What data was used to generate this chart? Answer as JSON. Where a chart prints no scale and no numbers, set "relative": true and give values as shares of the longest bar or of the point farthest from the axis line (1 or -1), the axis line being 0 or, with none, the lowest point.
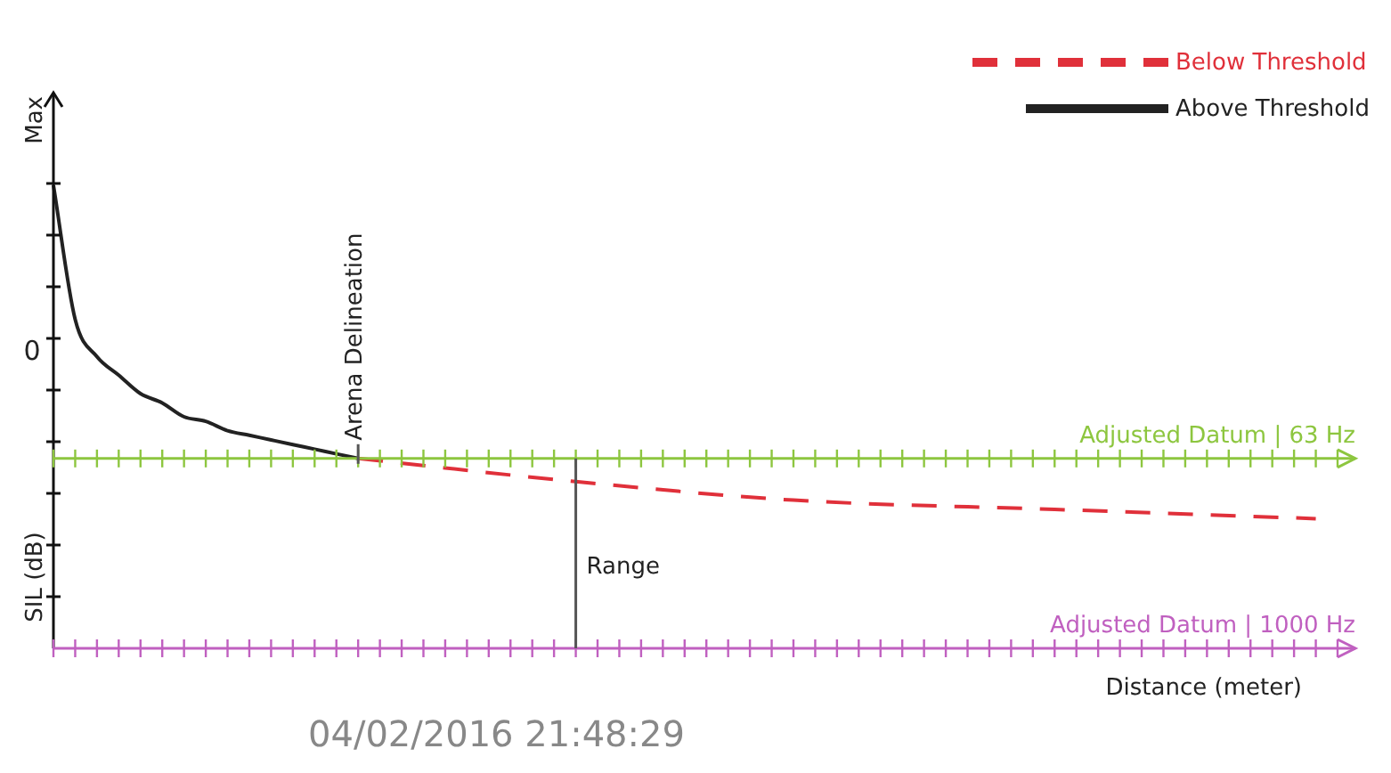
{
  "chart_data": {
    "type": "line",
    "relative": true,
    "ylabel": "SIL (dB)",
    "xlabel": "Distance (meter)",
    "categories": [
      null,
      null,
      null,
      null,
      null,
      null,
      null,
      null,
      null,
      null,
      null,
      null,
      null,
      null,
      null,
      null,
      null,
      null,
      null,
      null,
      null,
      null,
      null,
      null,
      null,
      null,
      null,
      null,
      null,
      null,
      null,
      null,
      null,
      null,
      null,
      null,
      null,
      null,
      null,
      null,
      null,
      null,
      null,
      null,
      null,
      null,
      null,
      null,
      null,
      null,
      null,
      null,
      null,
      null,
      null,
      null,
      null,
      null,
      null,
      null
    ],
    "series": [
      {
        "name": "Below Threshold",
        "color": "#e0303a",
        "line_style": "dashed",
        "values": [
          null,
          null,
          null,
          null,
          null,
          null,
          null,
          null,
          null,
          null,
          null,
          null,
          null,
          null,
          0.41,
          null,
          null,
          null,
          null,
          null,
          null,
          null,
          null,
          null,
          0.36,
          null,
          null,
          null,
          null,
          null,
          null,
          null,
          null,
          null,
          0.32,
          null,
          null,
          null,
          null,
          null,
          null,
          null,
          null,
          null,
          null,
          null,
          0.3,
          null,
          null,
          null,
          null,
          null,
          null,
          null,
          null,
          null,
          null,
          null,
          0.28,
          null
        ]
      },
      {
        "name": "Above Threshold",
        "color": "#222222",
        "line_style": "solid",
        "values": [
          1,
          0.71,
          0.63,
          0.59,
          0.55,
          0.53,
          0.5,
          0.49,
          0.47,
          0.46,
          0.45,
          0.44,
          0.43,
          0.42,
          0.41,
          null,
          null,
          null,
          null,
          null,
          null,
          null,
          null,
          null,
          null,
          null,
          null,
          null,
          null,
          null,
          null,
          null,
          null,
          null,
          null,
          null,
          null,
          null,
          null,
          null,
          null,
          null,
          null,
          null,
          null,
          null,
          null,
          null,
          null,
          null,
          null,
          null,
          null,
          null,
          null,
          null,
          null,
          null,
          null,
          null
        ]
      }
    ],
    "ref_lines": [
      {
        "axis": "y",
        "value": 0.41,
        "label": "Adjusted Datum | 63 Hz",
        "color": "#8dc63f"
      },
      {
        "axis": "y",
        "value": 0,
        "label": "Adjusted Datum | 1000 Hz",
        "color": "#c060c0"
      }
    ],
    "annotations": [
      "Max",
      "0",
      "Arena Delineation",
      "Range",
      "04/02/2016 21:48:29"
    ],
    "legend": "top right",
    "marker": "none"
  }
}
